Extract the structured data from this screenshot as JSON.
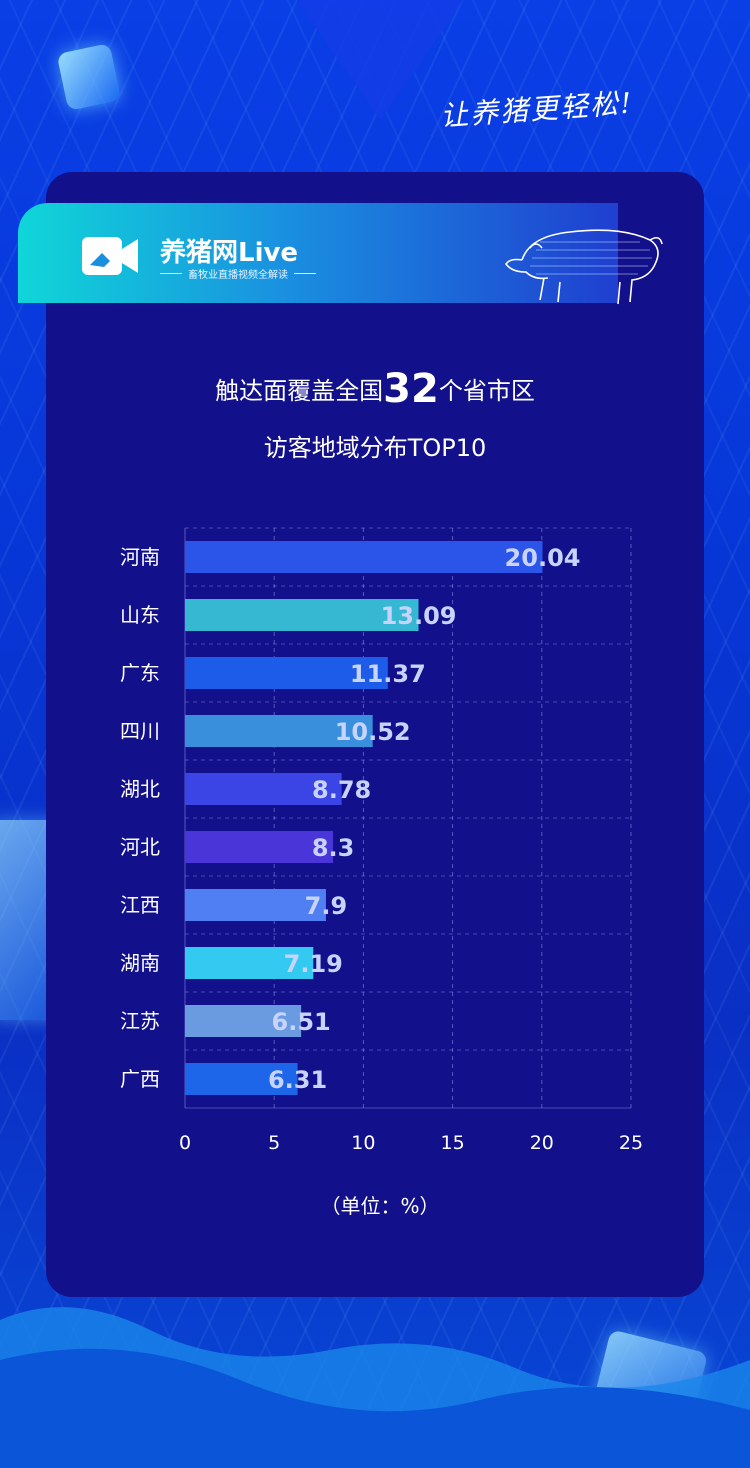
{
  "slogan": "让养猪更轻松!",
  "brand": {
    "name": "养猪网Live",
    "tagline": "畜牧业直播视频全解读"
  },
  "headline": {
    "line1_pre": "触达面覆盖全国",
    "line1_big": "32",
    "line1_post": "个省市区",
    "line2": "访客地域分布TOP10"
  },
  "chart_data": {
    "type": "bar",
    "orientation": "horizontal",
    "categories": [
      "河南",
      "山东",
      "广东",
      "四川",
      "湖北",
      "河北",
      "江西",
      "湖南",
      "江苏",
      "广西"
    ],
    "values": [
      20.04,
      13.09,
      11.37,
      10.52,
      8.78,
      8.3,
      7.9,
      7.19,
      6.51,
      6.31
    ],
    "value_labels": [
      "20.04",
      "13.09",
      "11.37",
      "10.52",
      "8.78",
      "8.3",
      "7.9",
      "7.19",
      "6.51",
      "6.31"
    ],
    "colors": [
      "#2a55e8",
      "#36b7d2",
      "#1c5ce8",
      "#3a8fdc",
      "#3b45e6",
      "#4a35d8",
      "#4f7ff2",
      "#34c9f0",
      "#6a9ae0",
      "#1d66ea"
    ],
    "xlim": [
      0,
      25
    ],
    "xticks": [
      "0",
      "5",
      "10",
      "15",
      "20",
      "25"
    ],
    "xticks_values": [
      0,
      5,
      10,
      15,
      20,
      25
    ],
    "unit_label": "（单位：%）",
    "grid": true
  }
}
